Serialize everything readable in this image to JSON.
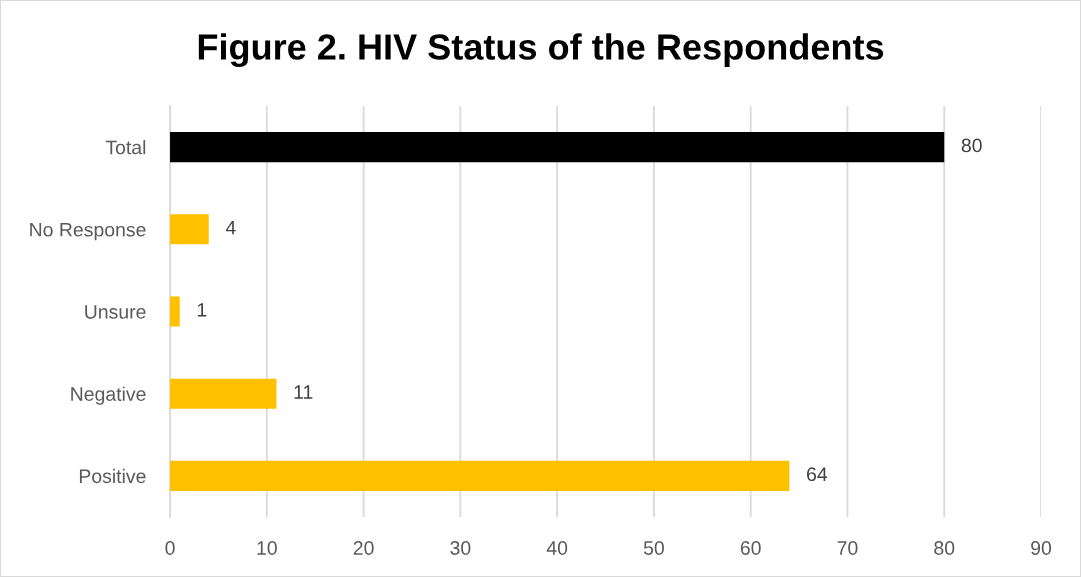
{
  "chart_data": {
    "type": "bar",
    "orientation": "horizontal",
    "title": "Figure 2. HIV Status of the Respondents",
    "categories": [
      "Total",
      "No Response",
      "Unsure",
      "Negative",
      "Positive"
    ],
    "values": [
      80,
      4,
      1,
      11,
      64
    ],
    "colors": [
      "#000000",
      "#ffc000",
      "#ffc000",
      "#ffc000",
      "#ffc000"
    ],
    "xlim": [
      0,
      90
    ],
    "xticks": [
      0,
      10,
      20,
      30,
      40,
      50,
      60,
      70,
      80,
      90
    ],
    "grid": "x",
    "data_labels": true
  }
}
